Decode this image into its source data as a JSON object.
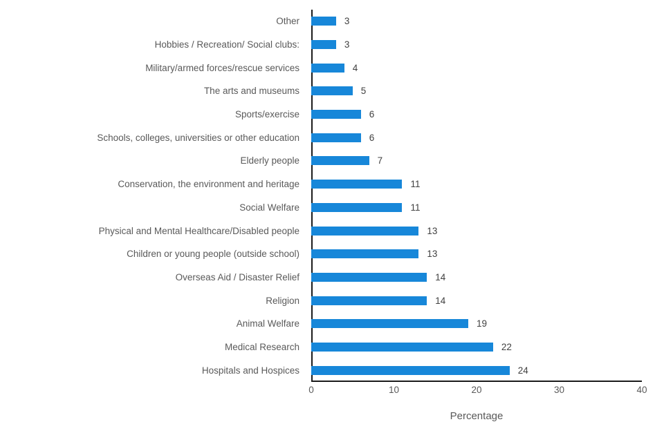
{
  "chart_data": {
    "type": "bar",
    "orientation": "horizontal",
    "title": "",
    "xlabel": "Percentage",
    "ylabel": "",
    "xlim": [
      0,
      40
    ],
    "xticks": [
      "0",
      "10",
      "20",
      "30",
      "40"
    ],
    "grid": false,
    "legend": null,
    "categories": [
      "Other",
      "Hobbies / Recreation/ Social clubs:",
      "Military/armed forces/rescue services",
      "The arts and museums",
      "Sports/exercise",
      "Schools, colleges, universities or other education",
      "Elderly people",
      "Conservation, the environment and heritage",
      "Social Welfare",
      "Physical and Mental Healthcare/Disabled people",
      "Children or young people (outside school)",
      "Overseas Aid / Disaster Relief",
      "Religion",
      "Animal Welfare",
      "Medical Research",
      "Hospitals and Hospices"
    ],
    "values": [
      3,
      3,
      4,
      5,
      6,
      6,
      7,
      11,
      11,
      13,
      13,
      14,
      14,
      19,
      22,
      24
    ],
    "colors": {
      "bar": "#1787d9",
      "category_label": "#595959",
      "value_label": "#404040",
      "axis_line": "#1a1a1a",
      "tick_label": "#595959",
      "background": "#ffffff"
    }
  }
}
